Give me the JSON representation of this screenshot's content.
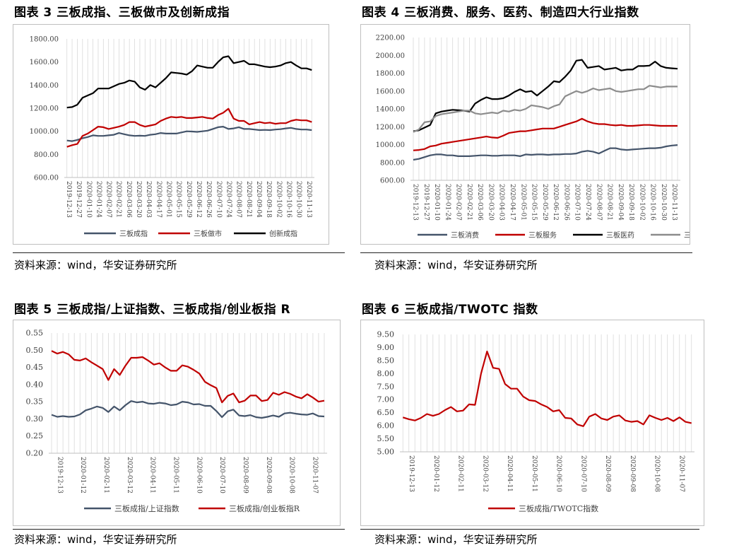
{
  "charts": [
    {
      "title": "图表 3 三板成指、三板做市及创新成指",
      "source": "资料来源：wind，华安证券研究所",
      "chart_data": {
        "type": "line",
        "ylim": [
          600,
          1800
        ],
        "yticks": [
          "600.00",
          "800.00",
          "1000.00",
          "1200.00",
          "1400.00",
          "1600.00",
          "1800.00"
        ],
        "x_labels": [
          "2019-12-13",
          "2019-12-27",
          "2020-01-10",
          "2020-01-24",
          "2020-02-07",
          "2020-02-21",
          "2020-03-06",
          "2020-03-20",
          "2020-04-03",
          "2020-04-17",
          "2020-05-01",
          "2020-05-15",
          "2020-05-29",
          "2020-06-12",
          "2020-06-26",
          "2020-07-10",
          "2020-07-24",
          "2020-08-07",
          "2020-08-21",
          "2020-09-04",
          "2020-09-18",
          "2020-10-02",
          "2020-10-16",
          "2020-10-30",
          "2020-11-13"
        ],
        "grid": "vertical",
        "legend": "bottom",
        "series": [
          {
            "name": "三板成指",
            "color": "#44546A",
            "values": [
              920,
              915,
              925,
              940,
              950,
              965,
              960,
              960,
              965,
              970,
              985,
              975,
              965,
              960,
              962,
              960,
              970,
              975,
              985,
              980,
              980,
              980,
              990,
              1000,
              998,
              995,
              1000,
              1005,
              1020,
              1035,
              1040,
              1020,
              1025,
              1035,
              1020,
              1020,
              1015,
              1010,
              1012,
              1010,
              1015,
              1018,
              1025,
              1030,
              1020,
              1015,
              1015,
              1010
            ]
          },
          {
            "name": "三板做市",
            "color": "#C00000",
            "values": [
              865,
              880,
              890,
              960,
              980,
              1010,
              1040,
              1035,
              1020,
              1030,
              1040,
              1055,
              1080,
              1080,
              1055,
              1040,
              1050,
              1060,
              1090,
              1110,
              1125,
              1120,
              1125,
              1115,
              1115,
              1120,
              1125,
              1115,
              1110,
              1140,
              1160,
              1195,
              1110,
              1090,
              1090,
              1060,
              1070,
              1080,
              1070,
              1075,
              1065,
              1070,
              1070,
              1090,
              1100,
              1095,
              1095,
              1080
            ]
          },
          {
            "name": "创新成指",
            "color": "#000000",
            "values": [
              1205,
              1210,
              1230,
              1290,
              1310,
              1330,
              1370,
              1370,
              1370,
              1390,
              1410,
              1420,
              1440,
              1430,
              1380,
              1360,
              1400,
              1380,
              1420,
              1460,
              1510,
              1505,
              1500,
              1490,
              1520,
              1570,
              1560,
              1550,
              1550,
              1600,
              1640,
              1650,
              1590,
              1600,
              1610,
              1580,
              1580,
              1570,
              1560,
              1555,
              1560,
              1570,
              1590,
              1600,
              1570,
              1545,
              1545,
              1530
            ]
          }
        ]
      }
    },
    {
      "title": "图表 4 三板消费、服务、医药、制造四大行业指数",
      "source": "资料来源：wind，华安证券研究所",
      "chart_data": {
        "type": "line",
        "ylim": [
          600,
          2200
        ],
        "yticks": [
          "600.00",
          "800.00",
          "1000.00",
          "1200.00",
          "1400.00",
          "1600.00",
          "1800.00",
          "2000.00",
          "2200.00"
        ],
        "x_labels": [
          "2019-12-13",
          "2019-12-27",
          "2020-01-10",
          "2020-01-24",
          "2020-02-07",
          "2020-02-21",
          "2020-03-06",
          "2020-03-20",
          "2020-04-03",
          "2020-04-17",
          "2020-05-01",
          "2020-05-15",
          "2020-05-29",
          "2020-06-12",
          "2020-06-26",
          "2020-07-10",
          "2020-07-24",
          "2020-08-07",
          "2020-08-21",
          "2020-09-04",
          "2020-09-18",
          "2020-10-02",
          "2020-10-16",
          "2020-10-30",
          "2020-11-13"
        ],
        "grid": "vertical",
        "legend": "bottom",
        "series": [
          {
            "name": "三板消费",
            "color": "#44546A",
            "values": [
              830,
              840,
              860,
              880,
              890,
              890,
              880,
              880,
              870,
              870,
              870,
              875,
              880,
              880,
              875,
              875,
              880,
              880,
              880,
              870,
              890,
              885,
              890,
              890,
              885,
              890,
              890,
              895,
              895,
              900,
              920,
              930,
              920,
              900,
              930,
              960,
              960,
              945,
              940,
              945,
              950,
              955,
              960,
              960,
              965,
              980,
              990,
              995
            ]
          },
          {
            "name": "三板服务",
            "color": "#C00000",
            "values": [
              935,
              940,
              950,
              980,
              990,
              1010,
              1020,
              1030,
              1040,
              1050,
              1060,
              1070,
              1080,
              1090,
              1080,
              1075,
              1100,
              1130,
              1140,
              1150,
              1150,
              1160,
              1170,
              1180,
              1180,
              1180,
              1200,
              1220,
              1240,
              1260,
              1290,
              1260,
              1240,
              1230,
              1230,
              1220,
              1215,
              1220,
              1210,
              1210,
              1215,
              1220,
              1220,
              1215,
              1210,
              1210,
              1210,
              1210
            ]
          },
          {
            "name": "三板医药",
            "color": "#000000",
            "values": [
              1150,
              1160,
              1190,
              1220,
              1350,
              1370,
              1380,
              1390,
              1385,
              1380,
              1370,
              1460,
              1500,
              1530,
              1510,
              1510,
              1520,
              1550,
              1590,
              1620,
              1590,
              1600,
              1550,
              1600,
              1650,
              1710,
              1700,
              1760,
              1830,
              1940,
              1950,
              1860,
              1870,
              1880,
              1840,
              1850,
              1860,
              1830,
              1840,
              1840,
              1880,
              1880,
              1885,
              1930,
              1880,
              1860,
              1855,
              1850
            ]
          },
          {
            "name": "三板制造",
            "color": "#8C8C8C",
            "values": [
              1140,
              1170,
              1250,
              1260,
              1320,
              1340,
              1350,
              1360,
              1370,
              1380,
              1380,
              1350,
              1340,
              1350,
              1360,
              1350,
              1380,
              1370,
              1390,
              1380,
              1400,
              1440,
              1430,
              1420,
              1400,
              1430,
              1450,
              1540,
              1570,
              1600,
              1580,
              1600,
              1630,
              1610,
              1620,
              1630,
              1600,
              1590,
              1600,
              1610,
              1620,
              1620,
              1660,
              1650,
              1640,
              1650,
              1650,
              1650
            ]
          }
        ]
      }
    },
    {
      "title": "图表 5 三板成指/上证指数、三板成指/创业板指 R",
      "source": "资料来源：wind，华安证券研究所",
      "chart_data": {
        "type": "line",
        "ylim": [
          0.2,
          0.55
        ],
        "yticks": [
          "0.20",
          "0.25",
          "0.30",
          "0.35",
          "0.40",
          "0.45",
          "0.50",
          "0.55"
        ],
        "x_labels": [
          "2019-12-13",
          "2020-01-12",
          "2020-02-11",
          "2020-03-12",
          "2020-04-11",
          "2020-05-11",
          "2020-06-10",
          "2020-07-10",
          "2020-08-09",
          "2020-09-08",
          "2020-10-08",
          "2020-11-07"
        ],
        "grid": "vertical",
        "legend": "bottom",
        "series": [
          {
            "name": "三板成指/上证指数",
            "color": "#44546A",
            "values": [
              0.312,
              0.306,
              0.308,
              0.306,
              0.307,
              0.313,
              0.325,
              0.33,
              0.336,
              0.332,
              0.32,
              0.336,
              0.325,
              0.34,
              0.352,
              0.348,
              0.35,
              0.345,
              0.344,
              0.347,
              0.345,
              0.34,
              0.342,
              0.35,
              0.348,
              0.342,
              0.343,
              0.338,
              0.338,
              0.323,
              0.305,
              0.322,
              0.327,
              0.31,
              0.308,
              0.311,
              0.305,
              0.303,
              0.306,
              0.31,
              0.306,
              0.316,
              0.318,
              0.315,
              0.313,
              0.312,
              0.316,
              0.308,
              0.307
            ]
          },
          {
            "name": "三板成指/创业板指R",
            "color": "#C00000",
            "values": [
              0.498,
              0.49,
              0.495,
              0.488,
              0.472,
              0.47,
              0.476,
              0.465,
              0.455,
              0.445,
              0.413,
              0.445,
              0.428,
              0.455,
              0.478,
              0.478,
              0.48,
              0.47,
              0.458,
              0.462,
              0.45,
              0.44,
              0.44,
              0.456,
              0.452,
              0.443,
              0.432,
              0.408,
              0.398,
              0.39,
              0.348,
              0.367,
              0.374,
              0.348,
              0.353,
              0.368,
              0.368,
              0.352,
              0.355,
              0.376,
              0.37,
              0.378,
              0.373,
              0.365,
              0.36,
              0.372,
              0.362,
              0.35,
              0.353
            ]
          }
        ]
      }
    },
    {
      "title": "图表 6 三板成指/TWOTC 指数",
      "source": "资料来源：wind，华安证券研究所",
      "chart_data": {
        "type": "line",
        "ylim": [
          5.0,
          9.5
        ],
        "yticks": [
          "5.00",
          "5.50",
          "6.00",
          "6.50",
          "7.00",
          "7.50",
          "8.00",
          "8.50",
          "9.00",
          "9.50"
        ],
        "x_labels": [
          "2019-12-13",
          "2020-01-12",
          "2020-02-11",
          "2020-03-12",
          "2020-04-11",
          "2020-05-11",
          "2020-06-10",
          "2020-07-10",
          "2020-08-09",
          "2020-09-08",
          "2020-10-08",
          "2020-11-07"
        ],
        "grid": "vertical",
        "legend": "bottom",
        "series": [
          {
            "name": "三板成指/TWOTC指数",
            "color": "#C00000",
            "values": [
              6.32,
              6.25,
              6.2,
              6.3,
              6.45,
              6.38,
              6.45,
              6.6,
              6.72,
              6.55,
              6.58,
              6.82,
              6.8,
              8.0,
              8.85,
              8.22,
              8.18,
              7.6,
              7.42,
              7.42,
              7.12,
              6.98,
              6.95,
              6.82,
              6.72,
              6.55,
              6.6,
              6.3,
              6.28,
              6.05,
              5.98,
              6.35,
              6.45,
              6.28,
              6.22,
              6.35,
              6.4,
              6.2,
              6.15,
              6.18,
              6.05,
              6.4,
              6.3,
              6.22,
              6.3,
              6.18,
              6.32,
              6.15,
              6.1
            ]
          }
        ]
      }
    }
  ]
}
